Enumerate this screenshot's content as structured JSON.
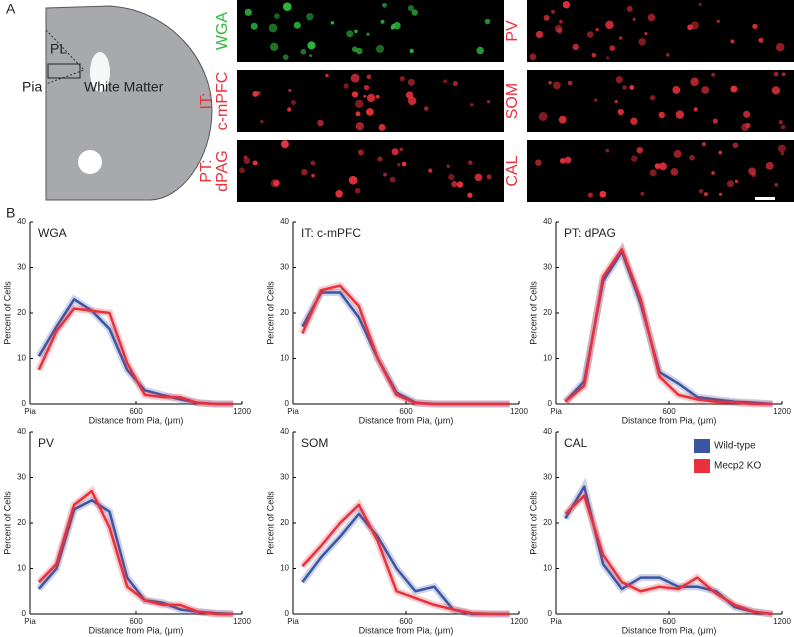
{
  "panel_labels": [
    "A",
    "B"
  ],
  "diagram": {
    "region": "PL",
    "pia": "Pia",
    "white_matter": "White Matter"
  },
  "images": [
    {
      "label": [
        "WGA"
      ],
      "color": "#2db83d"
    },
    {
      "label": [
        "IT:",
        "c-mPFC"
      ],
      "color": "#e8313c"
    },
    {
      "label": [
        "PT:",
        "dPAG"
      ],
      "color": "#e8313c"
    },
    {
      "label": [
        "PV"
      ],
      "color": "#e8313c"
    },
    {
      "label": [
        "SOM"
      ],
      "color": "#e8313c"
    },
    {
      "label": [
        "CAL"
      ],
      "color": "#e8313c"
    }
  ],
  "chart_data": [
    {
      "type": "line",
      "title": "WGA",
      "xlabel": "Distance from Pia, (μm)",
      "ylabel": "Percent of Cells",
      "x": [
        50,
        150,
        250,
        350,
        450,
        550,
        650,
        750,
        850,
        950,
        1050,
        1150
      ],
      "xlim": [
        0,
        1200
      ],
      "ylim": [
        0,
        40
      ],
      "xticks": [
        {
          "value": 0,
          "label": "Pia"
        },
        600,
        1200
      ],
      "yticks": [
        0,
        10,
        20,
        30,
        40
      ],
      "legend": false,
      "series": [
        {
          "name": "Wild-type",
          "color": "#3a55a4",
          "values": [
            10.5,
            17,
            23,
            20.5,
            16.5,
            7.5,
            3,
            2,
            1,
            0.3,
            0,
            0
          ]
        },
        {
          "name": "Mecp2 KO",
          "color": "#e8313c",
          "values": [
            7.5,
            16,
            21,
            20.5,
            20,
            9,
            2,
            1.5,
            1.5,
            0.2,
            0,
            0
          ]
        }
      ]
    },
    {
      "type": "line",
      "title": "IT: c-mPFC",
      "xlabel": "Distance from Pia, (μm)",
      "ylabel": "Percent of Cells",
      "x": [
        50,
        150,
        250,
        350,
        450,
        550,
        650,
        750,
        850,
        950,
        1050,
        1150
      ],
      "xlim": [
        0,
        1200
      ],
      "ylim": [
        0,
        40
      ],
      "xticks": [
        {
          "value": 0,
          "label": "Pia"
        },
        600,
        1200
      ],
      "yticks": [
        0,
        10,
        20,
        30,
        40
      ],
      "legend": false,
      "series": [
        {
          "name": "Wild-type",
          "color": "#3a55a4",
          "values": [
            17,
            24.5,
            24.5,
            19,
            10,
            2.5,
            0.3,
            0,
            0,
            0,
            0,
            0
          ]
        },
        {
          "name": "Mecp2 KO",
          "color": "#e8313c",
          "values": [
            15.5,
            25,
            26,
            21.5,
            10,
            2,
            0.2,
            0,
            0,
            0,
            0,
            0
          ]
        }
      ]
    },
    {
      "type": "line",
      "title": "PT: dPAG",
      "xlabel": "Distance from Pia, (μm)",
      "ylabel": "Percent of Cells",
      "x": [
        50,
        150,
        250,
        350,
        450,
        550,
        650,
        750,
        850,
        950,
        1050,
        1150
      ],
      "xlim": [
        0,
        1200
      ],
      "ylim": [
        0,
        40
      ],
      "xticks": [
        {
          "value": 0,
          "label": "Pia"
        },
        600,
        1200
      ],
      "yticks": [
        0,
        10,
        20,
        30,
        40
      ],
      "legend": false,
      "series": [
        {
          "name": "Wild-type",
          "color": "#3a55a4",
          "values": [
            0.5,
            5,
            27,
            33.5,
            22,
            7,
            4.5,
            1.5,
            1,
            0.5,
            0.3,
            0
          ]
        },
        {
          "name": "Mecp2 KO",
          "color": "#e8313c",
          "values": [
            0.5,
            4,
            28,
            34,
            23,
            6,
            2,
            1,
            0.5,
            0.3,
            0,
            0
          ]
        }
      ]
    },
    {
      "type": "line",
      "title": "PV",
      "xlabel": "Distance from Pia, (μm)",
      "ylabel": "Percent of Cells",
      "x": [
        50,
        150,
        250,
        350,
        450,
        550,
        650,
        750,
        850,
        950,
        1050,
        1150
      ],
      "xlim": [
        0,
        1200
      ],
      "ylim": [
        0,
        40
      ],
      "xticks": [
        {
          "value": 0,
          "label": "Pia"
        },
        600,
        1200
      ],
      "yticks": [
        0,
        10,
        20,
        30,
        40
      ],
      "legend": false,
      "series": [
        {
          "name": "Wild-type",
          "color": "#3a55a4",
          "values": [
            5.5,
            10,
            23,
            25,
            22.5,
            8,
            3,
            2.5,
            1,
            0.5,
            0.2,
            0
          ]
        },
        {
          "name": "Mecp2 KO",
          "color": "#e8313c",
          "values": [
            7,
            11,
            24,
            27,
            19,
            6,
            3,
            2,
            2,
            0.5,
            0,
            0
          ]
        }
      ]
    },
    {
      "type": "line",
      "title": "SOM",
      "xlabel": "Distance from Pia, (μm)",
      "ylabel": "Percent of Cells",
      "x": [
        50,
        150,
        250,
        350,
        450,
        550,
        650,
        750,
        850,
        950,
        1050,
        1150
      ],
      "xlim": [
        0,
        1200
      ],
      "ylim": [
        0,
        40
      ],
      "xticks": [
        {
          "value": 0,
          "label": "Pia"
        },
        600,
        1200
      ],
      "yticks": [
        0,
        10,
        20,
        30,
        40
      ],
      "legend": false,
      "series": [
        {
          "name": "Wild-type",
          "color": "#3a55a4",
          "values": [
            7,
            12.5,
            17,
            22,
            17,
            10,
            5,
            6,
            1,
            0,
            0,
            0
          ]
        },
        {
          "name": "Mecp2 KO",
          "color": "#e8313c",
          "values": [
            10.5,
            15,
            20,
            24,
            16,
            5,
            3.5,
            2,
            1,
            0.2,
            0,
            0
          ]
        }
      ]
    },
    {
      "type": "line",
      "title": "CAL",
      "xlabel": "Distance from Pia, (μm)",
      "ylabel": "Percent of Cells",
      "x": [
        50,
        150,
        250,
        350,
        450,
        550,
        650,
        750,
        850,
        950,
        1050,
        1150
      ],
      "xlim": [
        0,
        1200
      ],
      "ylim": [
        0,
        40
      ],
      "xticks": [
        {
          "value": 0,
          "label": "Pia"
        },
        600,
        1200
      ],
      "yticks": [
        0,
        10,
        20,
        30,
        40
      ],
      "legend": true,
      "series": [
        {
          "name": "Wild-type",
          "color": "#3a55a4",
          "values": [
            21,
            28,
            11,
            5.5,
            8,
            8,
            6,
            6,
            5,
            1.5,
            0.5,
            0
          ]
        },
        {
          "name": "Mecp2 KO",
          "color": "#e8313c",
          "values": [
            22,
            26,
            13,
            7,
            5,
            6,
            5.5,
            8,
            4.5,
            2,
            0.5,
            0
          ]
        }
      ]
    }
  ]
}
